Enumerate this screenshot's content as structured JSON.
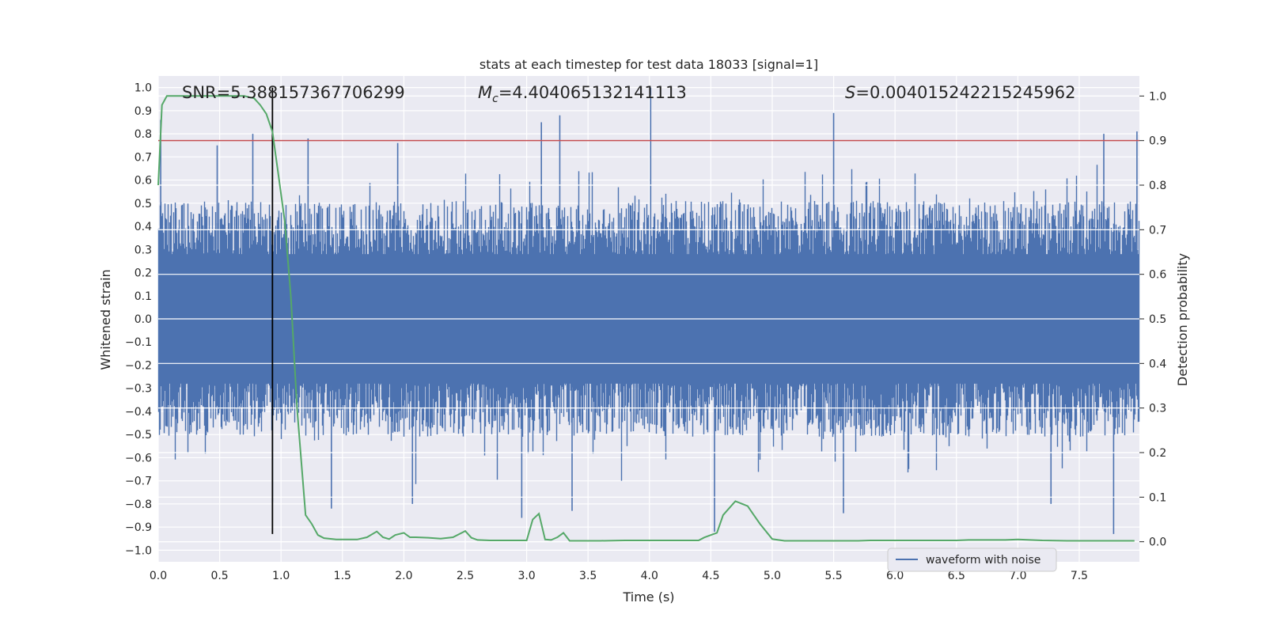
{
  "chart_data": {
    "type": "line",
    "title": "stats at each timestep for test data 18033 [signal=1]",
    "xlabel": "Time (s)",
    "ylabel": "Whitened strain",
    "y2label": "Detection probability",
    "xlim": [
      0,
      7.99
    ],
    "ylim": [
      -1.05,
      1.05
    ],
    "y2lim": [
      -0.045,
      1.045
    ],
    "x_ticks": [
      "0.0",
      "0.5",
      "1.0",
      "1.5",
      "2.0",
      "2.5",
      "3.0",
      "3.5",
      "4.0",
      "4.5",
      "5.0",
      "5.5",
      "6.0",
      "6.5",
      "7.0",
      "7.5"
    ],
    "y_ticks": [
      "1.0",
      "0.9",
      "0.8",
      "0.7",
      "0.6",
      "0.5",
      "0.4",
      "0.3",
      "0.2",
      "0.1",
      "0.0",
      "−0.1",
      "−0.2",
      "−0.3",
      "−0.4",
      "−0.5",
      "−0.6",
      "−0.7",
      "−0.8",
      "−0.9",
      "−1.0"
    ],
    "y2_ticks": [
      "1.0",
      "0.9",
      "0.8",
      "0.7",
      "0.6",
      "0.5",
      "0.4",
      "0.3",
      "0.2",
      "0.1",
      "0.0"
    ],
    "annotations": {
      "snr": "SNR=5.388157367706299",
      "mc_symbol": "M",
      "mc_sub": "c",
      "mc_value": "=4.404065132141113",
      "s_symbol": "S",
      "s_value": "=0.004015242215245962"
    },
    "legend": {
      "placement": "lower-right",
      "label": "waveform with noise"
    },
    "threshold_line": {
      "axis": "y2",
      "value": 0.9,
      "color": "#c44e52"
    },
    "vertical_marker": {
      "x": 0.93,
      "color": "#000000",
      "y_from": -0.93,
      "y_to": 1.0
    },
    "waveform": {
      "name": "waveform with noise",
      "color": "#4c72b0",
      "duration": 7.99,
      "envelope_max": 0.5,
      "envelope_min": -0.5,
      "peaks": [
        {
          "x": 0.02,
          "y": 0.86
        },
        {
          "x": 0.48,
          "y": 0.75
        },
        {
          "x": 0.77,
          "y": 0.8
        },
        {
          "x": 1.22,
          "y": 0.78
        },
        {
          "x": 1.95,
          "y": 0.76
        },
        {
          "x": 3.12,
          "y": 0.85
        },
        {
          "x": 3.27,
          "y": 0.88
        },
        {
          "x": 4.01,
          "y": 1.0
        },
        {
          "x": 5.5,
          "y": 0.89
        },
        {
          "x": 7.7,
          "y": 0.8
        },
        {
          "x": 7.97,
          "y": 0.81
        },
        {
          "x": 0.93,
          "y": -0.79
        },
        {
          "x": 1.41,
          "y": -0.82
        },
        {
          "x": 2.07,
          "y": -0.8
        },
        {
          "x": 2.96,
          "y": -0.86
        },
        {
          "x": 3.37,
          "y": -0.83
        },
        {
          "x": 4.53,
          "y": -0.92
        },
        {
          "x": 5.58,
          "y": -0.84
        },
        {
          "x": 7.27,
          "y": -0.8
        },
        {
          "x": 7.78,
          "y": -0.93
        }
      ]
    },
    "detection_probability": {
      "name": "Detection probability",
      "color": "#55a868",
      "x": [
        0.0,
        0.03,
        0.07,
        0.12,
        0.2,
        0.3,
        0.4,
        0.5,
        0.6,
        0.7,
        0.78,
        0.83,
        0.88,
        0.93,
        0.98,
        1.03,
        1.08,
        1.13,
        1.2,
        1.25,
        1.3,
        1.35,
        1.45,
        1.55,
        1.62,
        1.7,
        1.78,
        1.83,
        1.88,
        1.93,
        2.0,
        2.05,
        2.1,
        2.2,
        2.3,
        2.4,
        2.5,
        2.55,
        2.6,
        2.7,
        2.8,
        2.9,
        3.0,
        3.05,
        3.1,
        3.15,
        3.2,
        3.25,
        3.3,
        3.35,
        3.4,
        3.5,
        3.6,
        3.8,
        4.0,
        4.2,
        4.4,
        4.45,
        4.5,
        4.55,
        4.6,
        4.7,
        4.8,
        4.85,
        4.9,
        5.0,
        5.1,
        5.3,
        5.5,
        5.7,
        5.8,
        5.9,
        6.0,
        6.2,
        6.5,
        6.6,
        6.8,
        6.9,
        7.0,
        7.2,
        7.4,
        7.6,
        7.7,
        7.8,
        7.95
      ],
      "y": [
        0.8,
        0.98,
        1.0,
        1.0,
        1.0,
        1.0,
        1.0,
        1.0,
        1.0,
        1.0,
        0.995,
        0.98,
        0.96,
        0.92,
        0.82,
        0.72,
        0.55,
        0.3,
        0.06,
        0.04,
        0.015,
        0.008,
        0.005,
        0.005,
        0.005,
        0.01,
        0.023,
        0.01,
        0.006,
        0.015,
        0.02,
        0.01,
        0.01,
        0.009,
        0.007,
        0.01,
        0.024,
        0.009,
        0.004,
        0.003,
        0.003,
        0.003,
        0.003,
        0.05,
        0.063,
        0.005,
        0.004,
        0.01,
        0.02,
        0.002,
        0.002,
        0.002,
        0.002,
        0.003,
        0.003,
        0.003,
        0.003,
        0.01,
        0.015,
        0.02,
        0.06,
        0.091,
        0.08,
        0.06,
        0.04,
        0.006,
        0.002,
        0.002,
        0.002,
        0.002,
        0.003,
        0.003,
        0.003,
        0.003,
        0.003,
        0.004,
        0.004,
        0.004,
        0.005,
        0.003,
        0.002,
        0.002,
        0.002,
        0.002,
        0.002
      ]
    }
  }
}
